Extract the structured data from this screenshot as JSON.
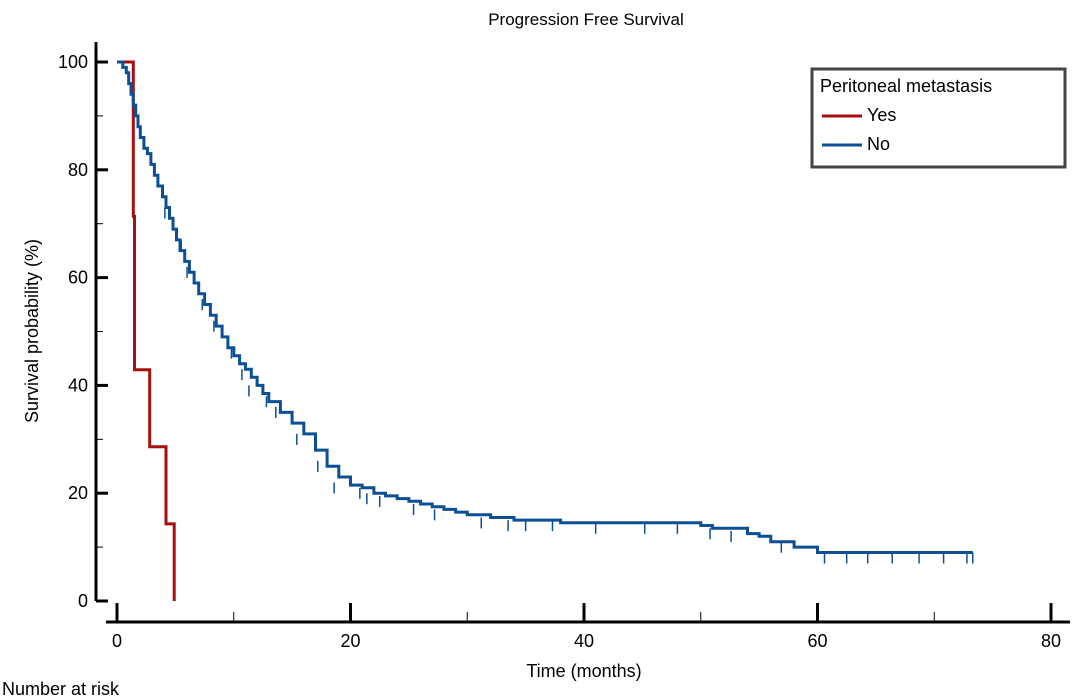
{
  "chart_data": {
    "type": "line",
    "title": "Progression Free Survival",
    "xlabel": "Time (months)",
    "ylabel": "Survival probability (%)",
    "xlim": [
      0,
      80
    ],
    "ylim": [
      0,
      100
    ],
    "xticks": [
      0,
      20,
      40,
      60,
      80
    ],
    "yticks": [
      0,
      20,
      40,
      60,
      80,
      100
    ],
    "x_minor_ticks": [
      10,
      30,
      50,
      70
    ],
    "y_minor_ticks": [
      10,
      30,
      50,
      70,
      90
    ],
    "grid": false,
    "step": true,
    "legend": {
      "title": "Peritoneal metastasis",
      "placement": "top-right"
    },
    "series": [
      {
        "name": "Yes",
        "color": "#a50f0f",
        "x": [
          0,
          1.4,
          1.4,
          1.5,
          1.5,
          2.8,
          2.8,
          4.2,
          4.2,
          4.9,
          4.9
        ],
        "y": [
          100,
          100,
          71.4,
          71.4,
          42.9,
          42.9,
          28.6,
          28.6,
          14.3,
          14.3,
          0
        ]
      },
      {
        "name": "No",
        "color": "#0d4f94",
        "x": [
          0,
          0.5,
          0.8,
          1.0,
          1.2,
          1.4,
          1.6,
          1.8,
          2.0,
          2.3,
          2.6,
          2.9,
          3.2,
          3.5,
          3.9,
          4.2,
          4.5,
          4.8,
          5.1,
          5.4,
          5.8,
          6.2,
          6.6,
          7.0,
          7.5,
          8.0,
          8.5,
          9.0,
          9.5,
          10.0,
          10.5,
          11.0,
          11.5,
          12.0,
          12.5,
          13.0,
          14.0,
          15.0,
          16.0,
          17.0,
          18.0,
          19.0,
          20.0,
          21.0,
          22.0,
          23.0,
          24.0,
          25.0,
          26.0,
          27.0,
          28.0,
          29.0,
          30.0,
          32.0,
          34.0,
          36.0,
          38.0,
          40.0,
          42.0,
          44.0,
          46.0,
          48.0,
          50.0,
          51.0,
          52.0,
          54.0,
          55.0,
          56.0,
          58.0,
          60.0,
          62.0,
          64.0,
          66.0,
          68.0,
          70.0,
          72.0,
          73.3
        ],
        "y": [
          100,
          99,
          98,
          96,
          94,
          92,
          90,
          88,
          86,
          84,
          83,
          81,
          79,
          77,
          75,
          73,
          71,
          69,
          67,
          65,
          63,
          61,
          59,
          57,
          55,
          53,
          51,
          49,
          47,
          45.5,
          44,
          43,
          41.5,
          40,
          38.5,
          37,
          35,
          33,
          31,
          28,
          25,
          23,
          21.5,
          21,
          20,
          19.5,
          19,
          18.5,
          18,
          17.5,
          17,
          16.5,
          16,
          15.5,
          15,
          15,
          14.5,
          14.5,
          14.5,
          14.5,
          14.5,
          14.5,
          14,
          13.5,
          13.5,
          12.5,
          12,
          11,
          10,
          9,
          9,
          9,
          9,
          9,
          9,
          9,
          9
        ]
      }
    ],
    "censor_marks": {
      "No": [
        [
          4.1,
          73
        ],
        [
          5.5,
          67
        ],
        [
          6.0,
          62
        ],
        [
          7.3,
          56
        ],
        [
          8.3,
          52
        ],
        [
          9.8,
          47
        ],
        [
          10.7,
          43
        ],
        [
          11.3,
          40
        ],
        [
          12.8,
          38
        ],
        [
          13.6,
          36
        ],
        [
          15.4,
          31
        ],
        [
          17.2,
          26
        ],
        [
          18.6,
          22
        ],
        [
          20.8,
          21
        ],
        [
          21.4,
          20
        ],
        [
          22.5,
          19.5
        ],
        [
          25.4,
          18
        ],
        [
          27.2,
          17
        ],
        [
          31.2,
          15.5
        ],
        [
          33.5,
          15
        ],
        [
          35.0,
          15
        ],
        [
          37.3,
          15
        ],
        [
          41.0,
          14.5
        ],
        [
          45.2,
          14.5
        ],
        [
          48.0,
          14.5
        ],
        [
          50.8,
          13.5
        ],
        [
          52.6,
          13
        ],
        [
          56.9,
          11
        ],
        [
          60.6,
          9
        ],
        [
          62.5,
          9
        ],
        [
          64.3,
          9
        ],
        [
          66.4,
          9
        ],
        [
          68.7,
          9
        ],
        [
          70.8,
          9
        ],
        [
          72.8,
          9
        ],
        [
          73.3,
          9
        ]
      ]
    }
  },
  "footer": {
    "text": "Number at risk"
  }
}
